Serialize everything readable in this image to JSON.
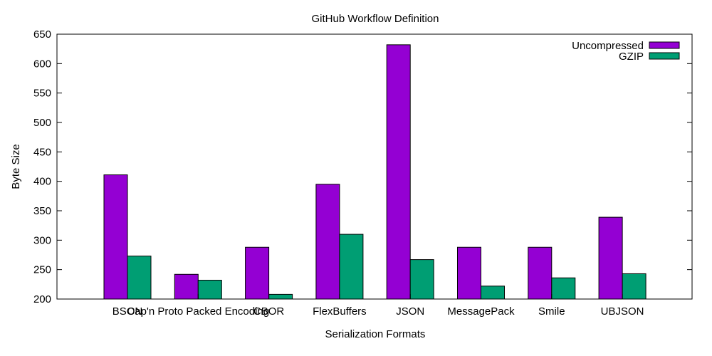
{
  "chart_data": {
    "type": "bar",
    "title": "GitHub Workflow Definition",
    "xlabel": "Serialization Formats",
    "ylabel": "Byte Size",
    "ylim": [
      200,
      650
    ],
    "yticks": [
      200,
      250,
      300,
      350,
      400,
      450,
      500,
      550,
      600,
      650
    ],
    "categories": [
      "BSON",
      "Cap'n Proto Packed Encoding",
      "CBOR",
      "FlexBuffers",
      "JSON",
      "MessagePack",
      "Smile",
      "UBJSON"
    ],
    "series": [
      {
        "name": "Uncompressed",
        "color": "#9400d3",
        "values": [
          411,
          242,
          288,
          395,
          632,
          288,
          288,
          339
        ]
      },
      {
        "name": "GZIP",
        "color": "#009e73",
        "values": [
          273,
          232,
          208,
          310,
          267,
          222,
          236,
          243
        ]
      }
    ],
    "legend_position": "top-right",
    "grid": false
  }
}
